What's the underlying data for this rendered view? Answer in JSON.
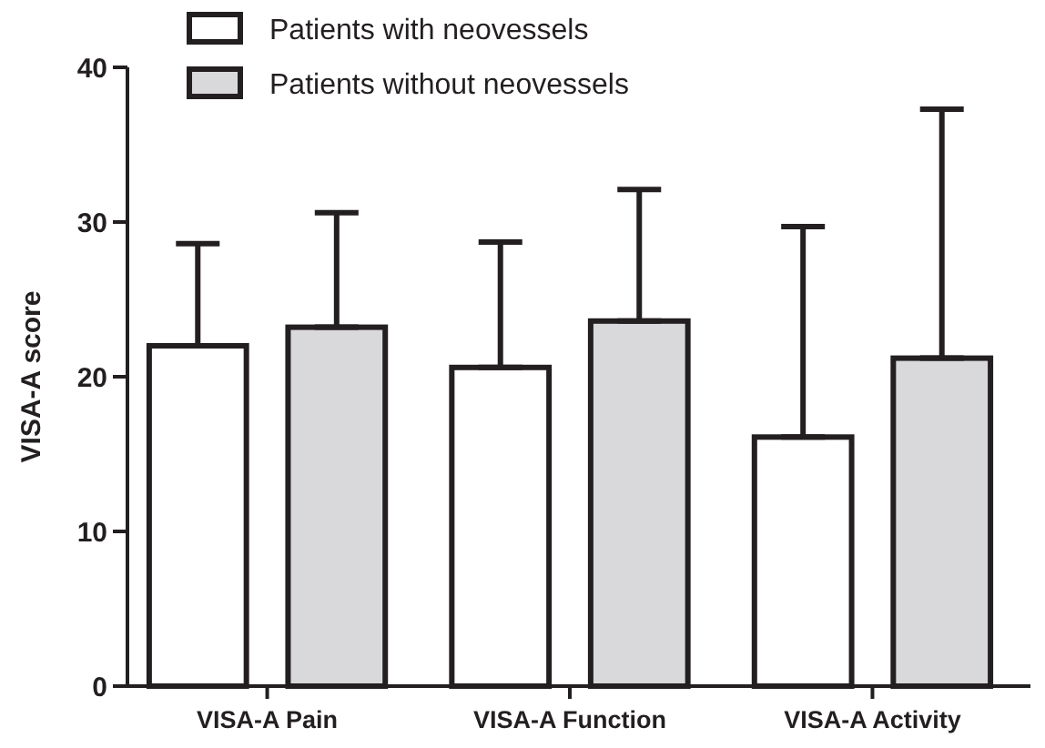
{
  "chart_data": {
    "type": "bar",
    "ylabel": "VISA-A score",
    "categories": [
      "VISA-A Pain",
      "VISA-A Function",
      "VISA-A Activity"
    ],
    "series": [
      {
        "name": "Patients with neovessels",
        "color": "#ffffff",
        "values": [
          22.0,
          20.6,
          16.1
        ],
        "errors": [
          [
            22.0,
            28.6
          ],
          [
            20.6,
            28.7
          ],
          [
            16.1,
            29.7
          ]
        ]
      },
      {
        "name": "Patients without neovessels",
        "color": "#d9d9db",
        "values": [
          23.2,
          23.6,
          21.2
        ],
        "errors": [
          [
            23.2,
            30.6
          ],
          [
            23.6,
            32.1
          ],
          [
            21.2,
            37.3
          ]
        ]
      }
    ],
    "ylim": [
      0,
      40
    ],
    "yticks": [
      0,
      10,
      20,
      30,
      40
    ],
    "grid": false,
    "legend": "top"
  }
}
